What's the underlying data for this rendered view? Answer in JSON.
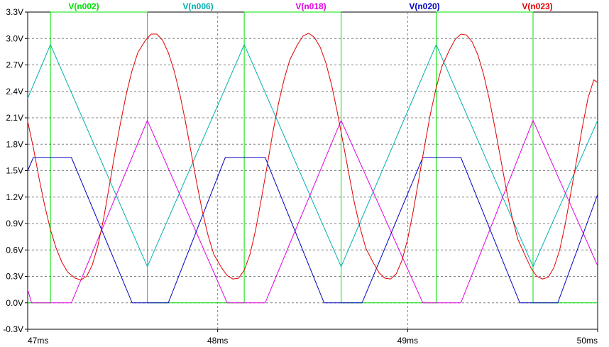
{
  "chart_data": {
    "type": "line",
    "title": "",
    "xlabel": "",
    "ylabel": "",
    "xlim": [
      47,
      50
    ],
    "ylim": [
      -0.3,
      3.3
    ],
    "grid": true,
    "legend_placement": "top",
    "x_ticks": [
      {
        "value": 47,
        "label": "47ms"
      },
      {
        "value": 48,
        "label": "48ms"
      },
      {
        "value": 49,
        "label": "49ms"
      },
      {
        "value": 50,
        "label": "50ms"
      }
    ],
    "y_ticks": [
      {
        "value": 3.3,
        "label": "3.3V"
      },
      {
        "value": 3.0,
        "label": "3.0V"
      },
      {
        "value": 2.7,
        "label": "2.7V"
      },
      {
        "value": 2.4,
        "label": "2.4V"
      },
      {
        "value": 2.1,
        "label": "2.1V"
      },
      {
        "value": 1.8,
        "label": "1.8V"
      },
      {
        "value": 1.5,
        "label": "1.5V"
      },
      {
        "value": 1.2,
        "label": "1.2V"
      },
      {
        "value": 0.9,
        "label": "0.9V"
      },
      {
        "value": 0.6,
        "label": "0.6V"
      },
      {
        "value": 0.3,
        "label": "0.3V"
      },
      {
        "value": 0.0,
        "label": "0.0V"
      },
      {
        "value": -0.3,
        "label": "-0.3V"
      }
    ],
    "series": [
      {
        "name": "V(n002)",
        "color": "#00e000",
        "x": [
          47.0,
          47.12,
          47.12,
          47.63,
          47.63,
          48.14,
          48.14,
          48.65,
          48.65,
          49.15,
          49.15,
          49.66,
          49.66,
          50.0
        ],
        "y": [
          0.0,
          0.0,
          3.3,
          3.3,
          0.0,
          0.0,
          3.3,
          3.3,
          0.0,
          0.0,
          3.3,
          3.3,
          0.0,
          0.0
        ]
      },
      {
        "name": "V(n006)",
        "color": "#00b0b0",
        "x": [
          47.0,
          47.12,
          47.63,
          48.14,
          48.65,
          49.15,
          49.66,
          50.0
        ],
        "y": [
          2.32,
          2.93,
          0.41,
          2.93,
          0.41,
          2.93,
          0.41,
          2.07
        ]
      },
      {
        "name": "V(n018)",
        "color": "#e000e0",
        "x": [
          47.0,
          47.02,
          47.23,
          47.63,
          48.05,
          48.25,
          48.65,
          49.08,
          49.28,
          49.66,
          50.0
        ],
        "y": [
          0.15,
          0.0,
          0.0,
          2.07,
          0.0,
          0.0,
          2.07,
          0.0,
          0.0,
          2.07,
          0.42
        ]
      },
      {
        "name": "V(n020)",
        "color": "#0000c0",
        "x": [
          47.0,
          47.03,
          47.23,
          47.55,
          47.74,
          48.04,
          48.25,
          48.56,
          48.76,
          49.08,
          49.28,
          49.59,
          49.79,
          50.0
        ],
        "y": [
          1.5,
          1.65,
          1.65,
          0.0,
          0.0,
          1.65,
          1.65,
          0.0,
          0.0,
          1.65,
          1.65,
          0.0,
          0.0,
          1.23
        ]
      },
      {
        "name": "V(n023)",
        "color": "#e00000",
        "x": [
          47.0,
          47.03,
          47.06,
          47.09,
          47.12,
          47.15,
          47.18,
          47.21,
          47.25,
          47.28,
          47.31,
          47.34,
          47.37,
          47.4,
          47.43,
          47.46,
          47.49,
          47.52,
          47.55,
          47.58,
          47.62,
          47.65,
          47.68,
          47.71,
          47.74,
          47.77,
          47.8,
          47.83,
          47.86,
          47.89,
          47.92,
          47.95,
          47.98,
          48.02,
          48.05,
          48.08,
          48.11,
          48.14,
          48.17,
          48.2,
          48.23,
          48.26,
          48.29,
          48.32,
          48.35,
          48.38,
          48.42,
          48.45,
          48.48,
          48.51,
          48.54,
          48.57,
          48.6,
          48.63,
          48.66,
          48.69,
          48.72,
          48.75,
          48.78,
          48.82,
          48.85,
          48.88,
          48.91,
          48.94,
          48.97,
          49.0,
          49.03,
          49.06,
          49.09,
          49.12,
          49.15,
          49.18,
          49.22,
          49.25,
          49.28,
          49.31,
          49.34,
          49.37,
          49.4,
          49.43,
          49.46,
          49.49,
          49.52,
          49.55,
          49.58,
          49.62,
          49.65,
          49.68,
          49.71,
          49.74,
          49.77,
          49.8,
          49.83,
          49.86,
          49.89,
          49.92,
          49.95,
          49.98,
          50.0
        ],
        "y": [
          2.06,
          1.76,
          1.41,
          1.1,
          0.83,
          0.62,
          0.46,
          0.35,
          0.28,
          0.26,
          0.3,
          0.43,
          0.65,
          0.96,
          1.33,
          1.71,
          2.06,
          2.38,
          2.64,
          2.84,
          2.98,
          3.05,
          3.05,
          2.98,
          2.84,
          2.64,
          2.38,
          2.06,
          1.71,
          1.36,
          1.03,
          0.76,
          0.55,
          0.4,
          0.31,
          0.27,
          0.28,
          0.37,
          0.55,
          0.83,
          1.18,
          1.55,
          1.93,
          2.26,
          2.54,
          2.76,
          2.93,
          3.03,
          3.06,
          3.01,
          2.9,
          2.72,
          2.47,
          2.16,
          1.82,
          1.47,
          1.13,
          0.85,
          0.62,
          0.45,
          0.34,
          0.28,
          0.27,
          0.33,
          0.48,
          0.72,
          1.05,
          1.42,
          1.79,
          2.15,
          2.44,
          2.68,
          2.87,
          2.99,
          3.05,
          3.04,
          2.96,
          2.81,
          2.59,
          2.31,
          1.98,
          1.63,
          1.28,
          0.97,
          0.72,
          0.53,
          0.39,
          0.3,
          0.27,
          0.29,
          0.4,
          0.6,
          0.9,
          1.26,
          1.63,
          2.0,
          2.33,
          2.53,
          2.5
        ]
      }
    ]
  }
}
